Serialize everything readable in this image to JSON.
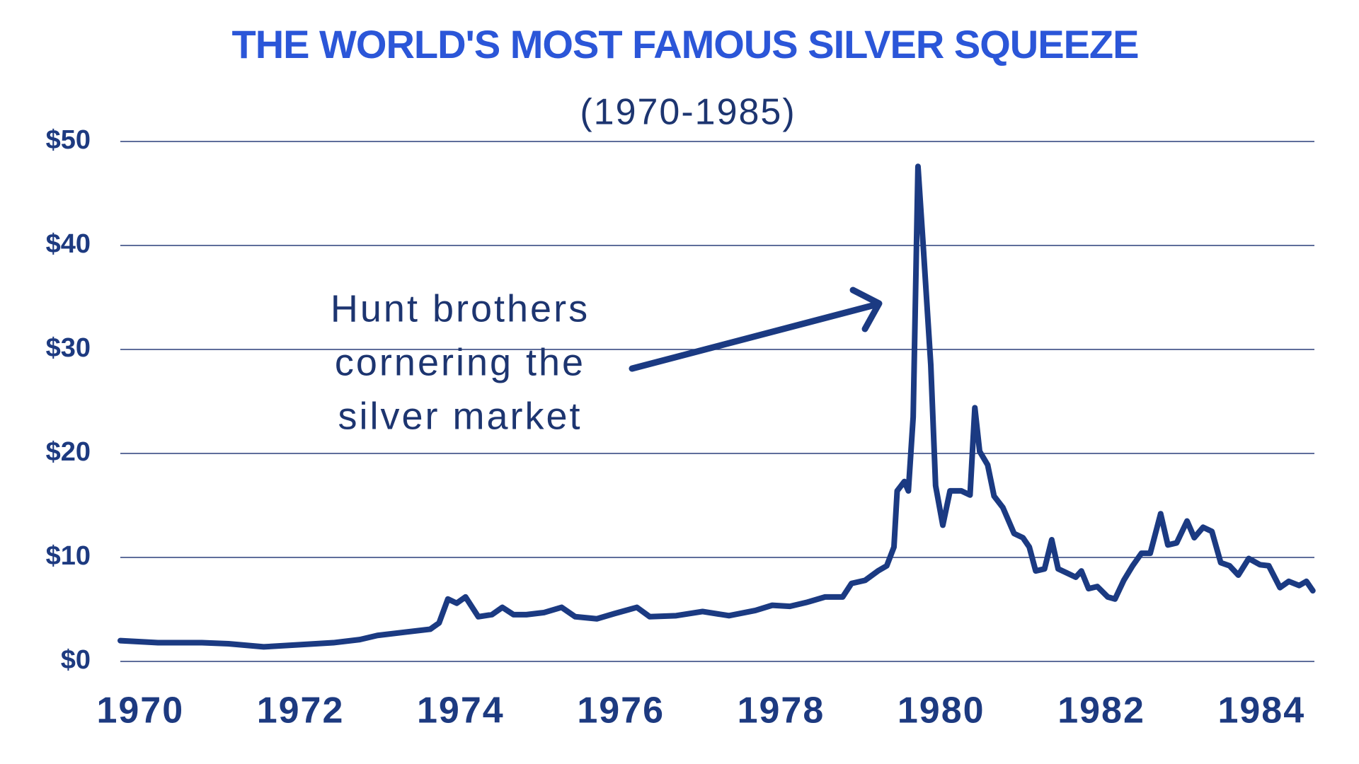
{
  "chart_data": {
    "type": "line",
    "title": "THE WORLD'S MOST FAMOUS SILVER SQUEEZE",
    "subtitle": "(1970-1985)",
    "annotation": {
      "lines": [
        "Hunt brothers",
        "cornering the",
        "silver market"
      ]
    },
    "color": "#1b3a82",
    "grid": true,
    "xlim": [
      1969.75,
      1984.66
    ],
    "xticks": [
      1970,
      1972,
      1974,
      1976,
      1978,
      1980,
      1982,
      1984
    ],
    "ylim": [
      0,
      50
    ],
    "yticks": [
      {
        "value": 0,
        "label": "$0"
      },
      {
        "value": 10,
        "label": "$10"
      },
      {
        "value": 20,
        "label": "$20"
      },
      {
        "value": 30,
        "label": "$30"
      },
      {
        "value": 40,
        "label": "$40"
      },
      {
        "value": 50,
        "label": "$50"
      }
    ],
    "x": [
      1969.75,
      1970.22,
      1970.77,
      1971.1,
      1971.54,
      1971.97,
      1972.41,
      1972.74,
      1972.96,
      1973.29,
      1973.62,
      1973.73,
      1973.84,
      1973.95,
      1974.06,
      1974.22,
      1974.39,
      1974.52,
      1974.66,
      1974.82,
      1975.04,
      1975.26,
      1975.43,
      1975.7,
      1975.92,
      1976.2,
      1976.36,
      1976.69,
      1977.02,
      1977.35,
      1977.68,
      1977.89,
      1978.11,
      1978.33,
      1978.55,
      1978.77,
      1978.88,
      1979.05,
      1979.21,
      1979.32,
      1979.41,
      1979.45,
      1979.54,
      1979.59,
      1979.65,
      1979.71,
      1979.78,
      1979.87,
      1979.93,
      1980.02,
      1980.11,
      1980.25,
      1980.36,
      1980.42,
      1980.48,
      1980.58,
      1980.66,
      1980.77,
      1980.91,
      1981.02,
      1981.1,
      1981.18,
      1981.29,
      1981.38,
      1981.46,
      1981.57,
      1981.68,
      1981.75,
      1981.84,
      1981.95,
      1982.08,
      1982.17,
      1982.28,
      1982.39,
      1982.5,
      1982.61,
      1982.74,
      1982.83,
      1982.94,
      1983.07,
      1983.16,
      1983.27,
      1983.38,
      1983.49,
      1983.6,
      1983.71,
      1983.84,
      1983.98,
      1984.09,
      1984.23,
      1984.34,
      1984.47,
      1984.56,
      1984.64
    ],
    "values": [
      2.0,
      1.8,
      1.8,
      1.7,
      1.4,
      1.6,
      1.8,
      2.1,
      2.5,
      2.8,
      3.1,
      3.7,
      6.0,
      5.6,
      6.2,
      4.3,
      4.5,
      5.2,
      4.5,
      4.5,
      4.7,
      5.2,
      4.3,
      4.1,
      4.6,
      5.2,
      4.3,
      4.4,
      4.8,
      4.4,
      4.9,
      5.4,
      5.3,
      5.7,
      6.2,
      6.2,
      7.5,
      7.8,
      8.7,
      9.2,
      11.0,
      16.4,
      17.3,
      16.4,
      23.5,
      47.6,
      39.4,
      28.5,
      16.9,
      13.1,
      16.4,
      16.4,
      16.0,
      24.4,
      20.2,
      18.9,
      15.9,
      14.8,
      12.3,
      11.9,
      11.0,
      8.7,
      8.9,
      11.7,
      8.9,
      8.5,
      8.1,
      8.7,
      7.0,
      7.2,
      6.2,
      6.0,
      7.8,
      9.2,
      10.4,
      10.4,
      14.2,
      11.2,
      11.4,
      13.5,
      11.9,
      12.9,
      12.5,
      9.5,
      9.2,
      8.3,
      9.9,
      9.3,
      9.2,
      7.1,
      7.7,
      7.3,
      7.7,
      6.8
    ]
  }
}
